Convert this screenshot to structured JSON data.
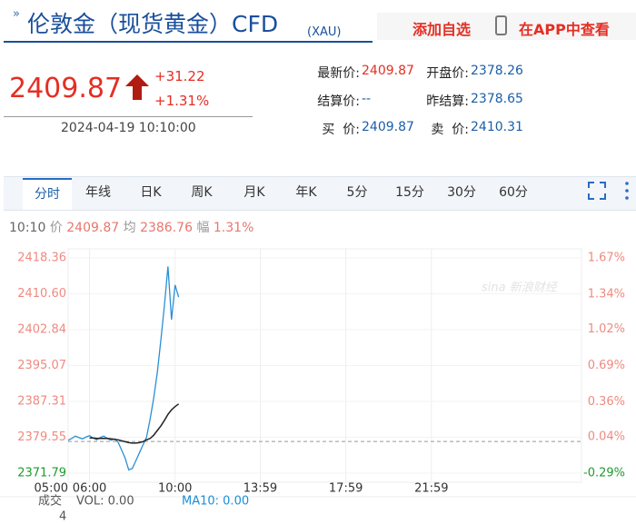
{
  "header": {
    "title": "伦敦金（现货黄金）CFD",
    "code": "(XAU)",
    "actions": [
      "添加自选",
      "在APP中查看"
    ]
  },
  "quote": {
    "price": "2409.87",
    "change": "+31.22",
    "percent": "+1.31%",
    "time": "2024-04-19 10:10:00"
  },
  "fields": [
    {
      "label": "最新价:",
      "value": "2409.87"
    },
    {
      "label": "开盘价:",
      "value": "2378.26"
    },
    {
      "label": "结算价:",
      "value": "--"
    },
    {
      "label": "昨结算:",
      "value": "2378.65"
    },
    {
      "label": "买  价:",
      "value": "2409.87"
    },
    {
      "label": "卖  价:",
      "value": "2410.31"
    }
  ],
  "tabs": [
    "分时",
    "年线",
    "日K",
    "周K",
    "月K",
    "年K",
    "5分",
    "15分",
    "30分",
    "60分"
  ],
  "info": {
    "time": "10:10",
    "price_label": "价",
    "price": "2409.87",
    "avg_label": "均",
    "avg": "2386.76",
    "range_label": "幅",
    "range": "1.31%"
  },
  "chart_data": {
    "type": "line",
    "watermark": "sina 新浪财经",
    "x": [
      "05:00",
      "05:10",
      "05:20",
      "05:30",
      "05:40",
      "05:50",
      "06:00",
      "06:10",
      "06:20",
      "06:30",
      "06:40",
      "06:50",
      "07:00",
      "07:10",
      "07:20",
      "07:30",
      "07:40",
      "07:50",
      "08:00",
      "08:10",
      "08:20",
      "08:30",
      "08:40",
      "08:50",
      "09:00",
      "09:10",
      "09:20",
      "09:30",
      "09:40",
      "09:50",
      "10:00",
      "10:10"
    ],
    "series": [
      {
        "name": "价",
        "color": "#2a8fd6",
        "values": [
          2378.9,
          2379.3,
          2379.8,
          2379.5,
          2379.2,
          2379.6,
          2379.9,
          2379.4,
          2379.0,
          2379.5,
          2379.8,
          2379.3,
          2378.9,
          2379.2,
          2378.5,
          2376.8,
          2375.0,
          2372.5,
          2372.8,
          2374.5,
          2376.2,
          2377.9,
          2379.6,
          2383.5,
          2388.0,
          2393.5,
          2400.5,
          2408.0,
          2416.5,
          2405.0,
          2412.5,
          2409.87
        ]
      },
      {
        "name": "均",
        "color": "#222222",
        "values": [
          null,
          null,
          null,
          null,
          null,
          null,
          2379.4,
          2379.4,
          2379.3,
          2379.3,
          2379.3,
          2379.3,
          2379.2,
          2379.1,
          2379.0,
          2378.8,
          2378.6,
          2378.4,
          2378.3,
          2378.3,
          2378.4,
          2378.6,
          2379.0,
          2379.3,
          2380.0,
          2381.0,
          2382.0,
          2383.2,
          2384.5,
          2385.5,
          2386.2,
          2386.76
        ]
      }
    ],
    "reference": 2378.65,
    "xlim": [
      "05:00",
      "05:00"
    ],
    "xticks": [
      "06:00",
      "10:00",
      "13:59",
      "17:59",
      "21:59",
      "05:00"
    ],
    "ylim": [
      2371.79,
      2418.36
    ],
    "yticks": [
      2418.36,
      {
        "value": 2410.6,
        "label": "2410.60"
      },
      2402.84,
      2395.07,
      2387.31,
      2379.55,
      2371.79
    ],
    "y2lim": [
      -0.29,
      1.67
    ],
    "y2ticks": [
      {
        "value": 1.67,
        "label": "1.67%"
      },
      {
        "value": 1.34,
        "label": "1.34%"
      },
      {
        "value": 1.02,
        "label": "1.02%"
      },
      {
        "value": 0.69,
        "label": "0.69%"
      },
      {
        "value": 0.36,
        "label": "0.36%"
      },
      {
        "value": 0.04,
        "label": "0.04%"
      },
      {
        "value": -0.29,
        "label": "-0.29%"
      }
    ],
    "grid": true,
    "volume": {
      "label": "成交",
      "value": "4",
      "vol": "VOL: 0.00",
      "ma10": "MA10: 0.00"
    }
  }
}
